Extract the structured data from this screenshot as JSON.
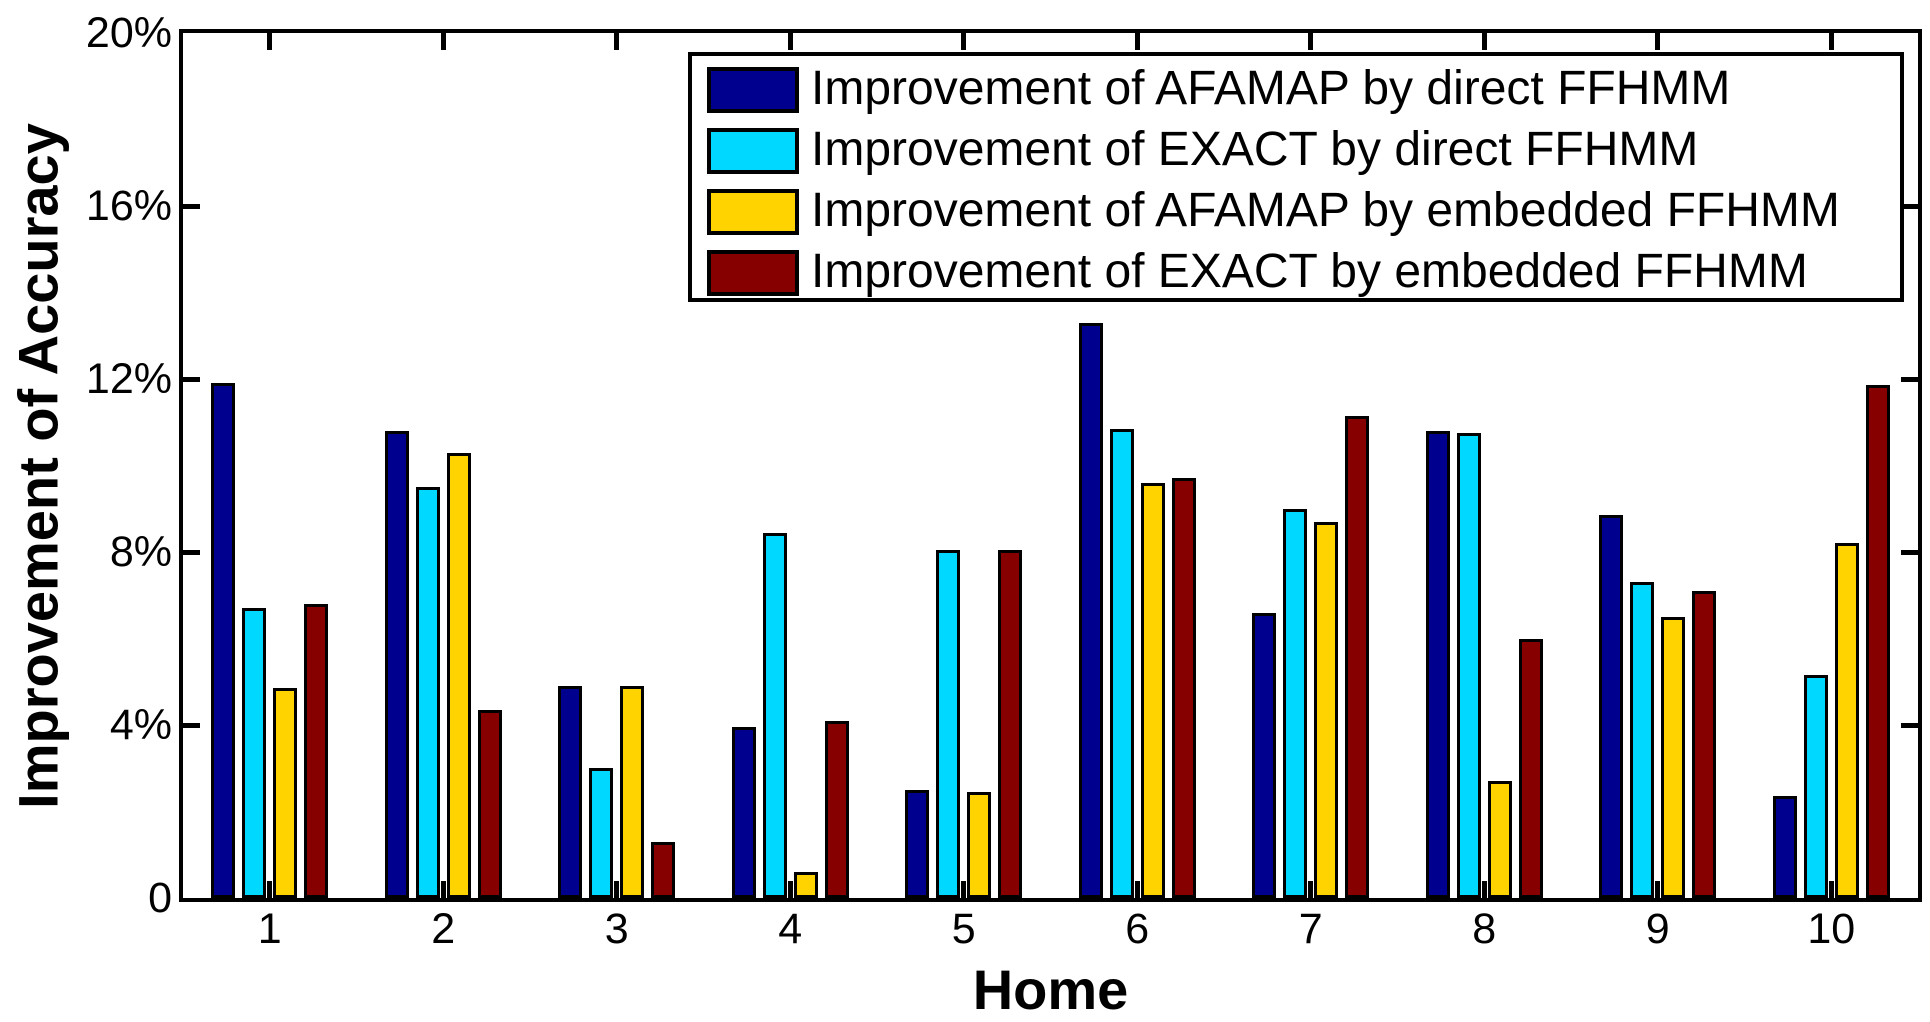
{
  "chart_data": {
    "type": "bar",
    "title": "",
    "xlabel": "Home",
    "ylabel": "Improvement of Accuracy",
    "categories": [
      "1",
      "2",
      "3",
      "4",
      "5",
      "6",
      "7",
      "8",
      "9",
      "10"
    ],
    "series": [
      {
        "name": "Improvement of AFAMAP by direct FFHMM",
        "color": "#00008F",
        "values": [
          11.9,
          10.8,
          4.9,
          3.95,
          2.5,
          13.3,
          6.6,
          10.8,
          8.85,
          2.35
        ]
      },
      {
        "name": "Improvement of EXACT by direct FFHMM",
        "color": "#00D8FF",
        "values": [
          6.7,
          9.5,
          3.0,
          8.45,
          8.05,
          10.85,
          9.0,
          10.75,
          7.3,
          5.15
        ]
      },
      {
        "name": "Improvement of AFAMAP by embedded FFHMM",
        "color": "#FFD300",
        "values": [
          4.85,
          10.3,
          4.9,
          0.6,
          2.45,
          9.6,
          8.7,
          2.7,
          6.5,
          8.2
        ]
      },
      {
        "name": "Improvement of EXACT by embedded FFHMM",
        "color": "#870000",
        "values": [
          6.8,
          4.35,
          1.3,
          4.1,
          8.05,
          9.7,
          11.15,
          6.0,
          7.1,
          11.85
        ]
      }
    ],
    "xlim": [
      0.5,
      10.5
    ],
    "ylim": [
      0,
      20
    ],
    "y_ticks": [
      {
        "value": 0,
        "label": "0"
      },
      {
        "value": 4,
        "label": "4%"
      },
      {
        "value": 8,
        "label": "8%"
      },
      {
        "value": 12,
        "label": "12%"
      },
      {
        "value": 16,
        "label": "16%"
      },
      {
        "value": 20,
        "label": "20%"
      }
    ],
    "grid": false,
    "legend_position": "top-center-inside",
    "axis_color": "#000000",
    "background_color": "#ffffff"
  }
}
